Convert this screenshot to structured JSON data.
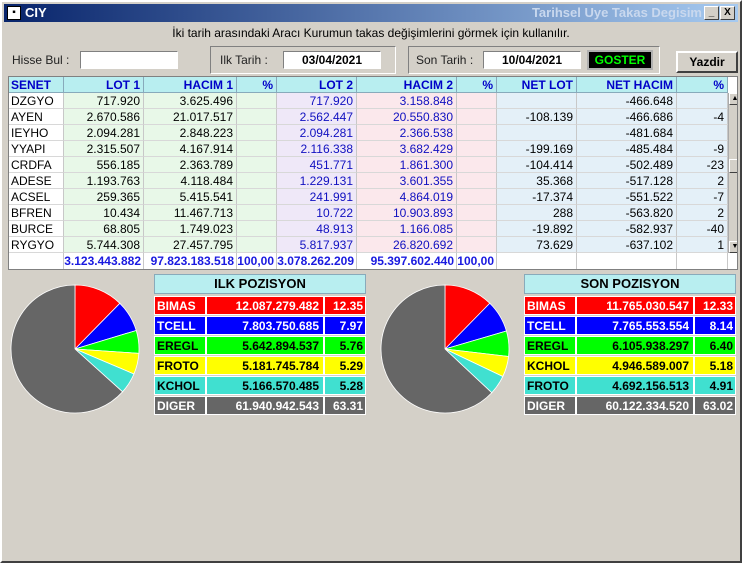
{
  "window": {
    "title": "CIY",
    "title_right": "Tarihsel Uye Takas Degisim",
    "buttons": {
      "minimize": "_",
      "maximize": "▫",
      "close": "X"
    }
  },
  "hint": "İki tarih arasındaki  Aracı Kurumun takas değişimlerini görmek için kullanılır.",
  "filters": {
    "hisse_label": "Hisse Bul :",
    "hisse_value": "",
    "ilk_label": "Ilk Tarih :",
    "ilk_value": "03/04/2021",
    "son_label": "Son Tarih :",
    "son_value": "10/04/2021",
    "goster_label": "GOSTER",
    "yazdir_label": "Yazdir"
  },
  "grid": {
    "headers": [
      "SENET",
      "LOT 1",
      "HACIM 1",
      "%",
      "LOT 2",
      "HACIM 2",
      "%",
      "NET LOT",
      "NET HACIM",
      "%"
    ],
    "rows": [
      [
        "DZGYO",
        "717.920",
        "3.625.496",
        "",
        "717.920",
        "3.158.848",
        "",
        "",
        "-466.648",
        ""
      ],
      [
        "AYEN",
        "2.670.586",
        "21.017.517",
        "",
        "2.562.447",
        "20.550.830",
        "",
        "-108.139",
        "-466.686",
        "-4"
      ],
      [
        "IEYHO",
        "2.094.281",
        "2.848.223",
        "",
        "2.094.281",
        "2.366.538",
        "",
        "",
        "-481.684",
        ""
      ],
      [
        "YYAPI",
        "2.315.507",
        "4.167.914",
        "",
        "2.116.338",
        "3.682.429",
        "",
        "-199.169",
        "-485.484",
        "-9"
      ],
      [
        "CRDFA",
        "556.185",
        "2.363.789",
        "",
        "451.771",
        "1.861.300",
        "",
        "-104.414",
        "-502.489",
        "-23"
      ],
      [
        "ADESE",
        "1.193.763",
        "4.118.484",
        "",
        "1.229.131",
        "3.601.355",
        "",
        "35.368",
        "-517.128",
        "2"
      ],
      [
        "ACSEL",
        "259.365",
        "5.415.541",
        "",
        "241.991",
        "4.864.019",
        "",
        "-17.374",
        "-551.522",
        "-7"
      ],
      [
        "BFREN",
        "10.434",
        "11.467.713",
        "",
        "10.722",
        "10.903.893",
        "",
        "288",
        "-563.820",
        "2"
      ],
      [
        "BURCE",
        "68.805",
        "1.749.023",
        "",
        "48.913",
        "1.166.085",
        "",
        "-19.892",
        "-582.937",
        "-40"
      ],
      [
        "RYGYO",
        "5.744.308",
        "27.457.795",
        "",
        "5.817.937",
        "26.820.692",
        "",
        "73.629",
        "-637.102",
        "1"
      ]
    ],
    "totals": [
      "",
      "3.123.443.882",
      "97.823.183.518",
      "100,00",
      "3.078.262.209",
      "95.397.602.440",
      "100,00",
      "",
      "",
      ""
    ]
  },
  "ilk_pozisyon": {
    "title": "ILK POZISYON",
    "rows": [
      {
        "name": "BIMAS",
        "value": "12.087.279.482",
        "pct": "12.35",
        "color": "#ff0000",
        "text": "#ffffff",
        "share": 12.35
      },
      {
        "name": "TCELL",
        "value": "7.803.750.685",
        "pct": "7.97",
        "color": "#0000ff",
        "text": "#ffffff",
        "share": 7.97
      },
      {
        "name": "EREGL",
        "value": "5.642.894.537",
        "pct": "5.76",
        "color": "#00ff00",
        "text": "#000000",
        "share": 5.76
      },
      {
        "name": "FROTO",
        "value": "5.181.745.784",
        "pct": "5.29",
        "color": "#ffff00",
        "text": "#000000",
        "share": 5.29
      },
      {
        "name": "KCHOL",
        "value": "5.166.570.485",
        "pct": "5.28",
        "color": "#40e0d0",
        "text": "#000000",
        "share": 5.28
      },
      {
        "name": "DIGER",
        "value": "61.940.942.543",
        "pct": "63.31",
        "color": "#666666",
        "text": "#ffffff",
        "share": 63.31
      }
    ]
  },
  "son_pozisyon": {
    "title": "SON POZISYON",
    "rows": [
      {
        "name": "BIMAS",
        "value": "11.765.030.547",
        "pct": "12.33",
        "color": "#ff0000",
        "text": "#ffffff",
        "share": 12.33
      },
      {
        "name": "TCELL",
        "value": "7.765.553.554",
        "pct": "8.14",
        "color": "#0000ff",
        "text": "#ffffff",
        "share": 8.14
      },
      {
        "name": "EREGL",
        "value": "6.105.938.297",
        "pct": "6.40",
        "color": "#00ff00",
        "text": "#000000",
        "share": 6.4
      },
      {
        "name": "KCHOL",
        "value": "4.946.589.007",
        "pct": "5.18",
        "color": "#ffff00",
        "text": "#000000",
        "share": 5.18
      },
      {
        "name": "FROTO",
        "value": "4.692.156.513",
        "pct": "4.91",
        "color": "#40e0d0",
        "text": "#000000",
        "share": 4.91
      },
      {
        "name": "DIGER",
        "value": "60.122.334.520",
        "pct": "63.02",
        "color": "#666666",
        "text": "#ffffff",
        "share": 63.02
      }
    ]
  }
}
